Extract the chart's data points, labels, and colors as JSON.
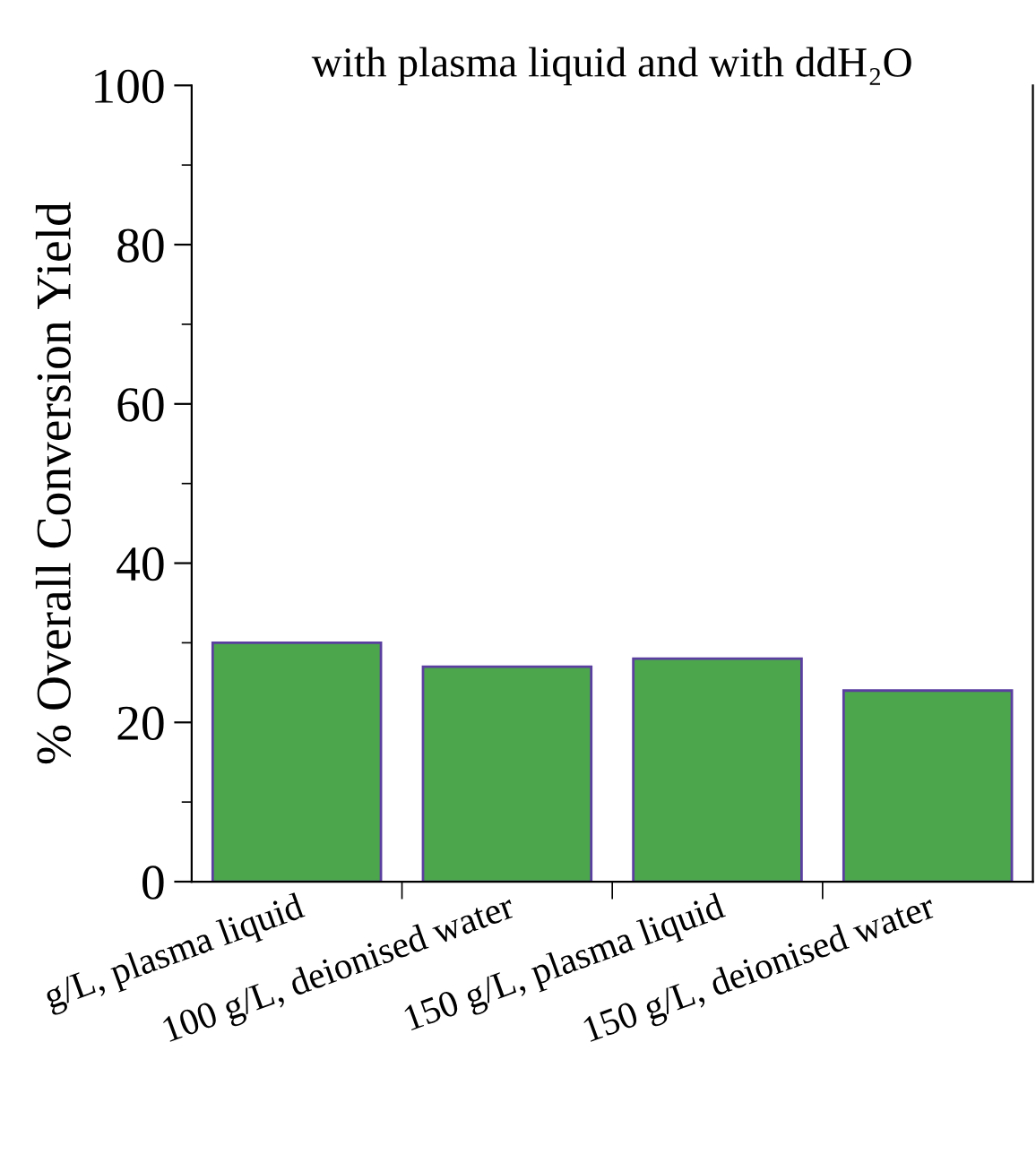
{
  "chart_data": {
    "type": "bar",
    "title": "with plasma liquid and with ddH₂O",
    "ylabel": "% Overall Conversion Yield",
    "categories": [
      "g/L, plasma liquid",
      "100 g/L, deionised water",
      "150 g/L, plasma liquid",
      "150 g/L, deionised water"
    ],
    "values": [
      30,
      27,
      28,
      24
    ],
    "color": "#4ca64c",
    "ylim": [
      0,
      100
    ],
    "yticks": [
      0,
      20,
      40,
      60,
      80,
      100
    ],
    "grid": false
  }
}
